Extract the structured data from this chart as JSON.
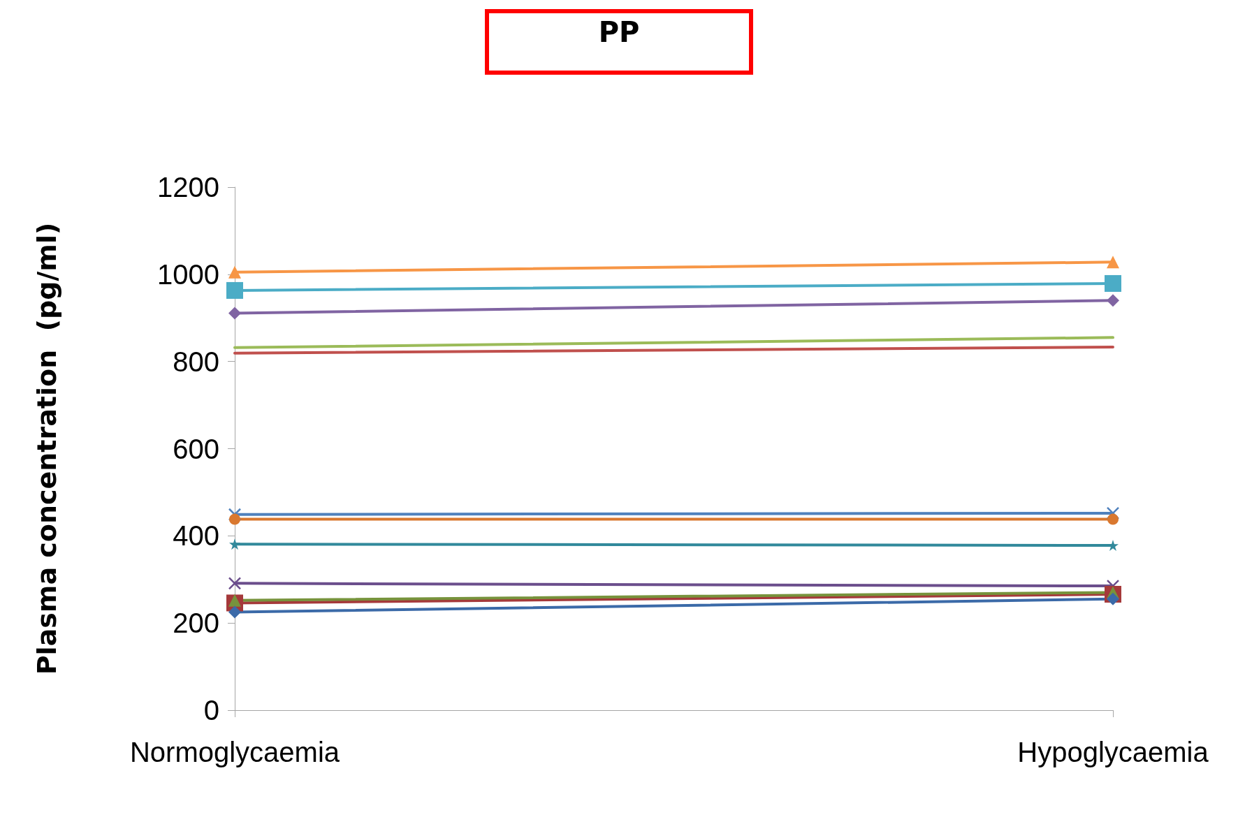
{
  "chart_data": {
    "type": "line",
    "title": "PP",
    "ylabel": "Plasma concentration  (pg/ml)",
    "categories": [
      "Normoglycaemia",
      "Hypoglycaemia"
    ],
    "ylim": [
      0,
      1200
    ],
    "yticks": [
      0,
      200,
      400,
      600,
      800,
      1000,
      1200
    ],
    "grid": false,
    "series": [
      {
        "color": "#f79646",
        "marker": "triangle",
        "values": [
          1005,
          1028
        ]
      },
      {
        "color": "#4bacc6",
        "marker": "square",
        "values": [
          963,
          979
        ]
      },
      {
        "color": "#8064a2",
        "marker": "diamond",
        "values": [
          911,
          940
        ]
      },
      {
        "color": "#9bbb59",
        "marker": "none",
        "values": [
          832,
          855
        ]
      },
      {
        "color": "#c0504d",
        "marker": "none",
        "values": [
          819,
          833
        ]
      },
      {
        "color": "#4f81bd",
        "marker": "cross",
        "values": [
          449,
          452
        ]
      },
      {
        "color": "#d9782f",
        "marker": "circle",
        "values": [
          438,
          438
        ]
      },
      {
        "color": "#31899b",
        "marker": "star",
        "values": [
          381,
          378
        ]
      },
      {
        "color": "#6b4e8c",
        "marker": "cross",
        "values": [
          291,
          285
        ]
      },
      {
        "color": "#a5393a",
        "marker": "square",
        "values": [
          246,
          266
        ]
      },
      {
        "color": "#77933c",
        "marker": "triangle",
        "values": [
          252,
          270
        ]
      },
      {
        "color": "#3b6aa8",
        "marker": "diamond",
        "values": [
          225,
          255
        ]
      }
    ]
  }
}
